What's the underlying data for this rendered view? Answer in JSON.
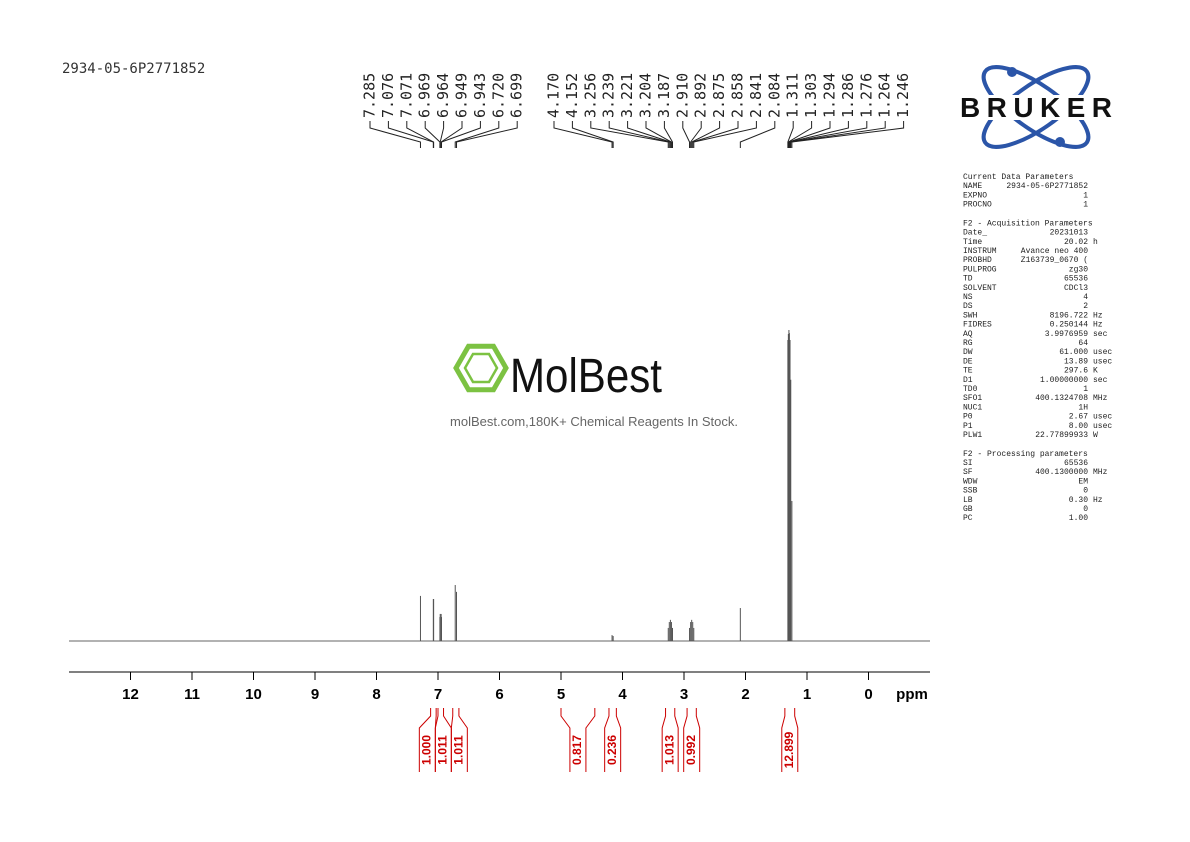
{
  "sample_id": "2934-05-6P2771852",
  "logo_text": "BRUKER",
  "watermark": {
    "brand": "MolBest",
    "tagline": "molBest.com,180K+ Chemical Reagents In Stock."
  },
  "chart_data": {
    "type": "nmr",
    "xlabel": "ppm",
    "xlim": [
      13,
      -1
    ],
    "xticks": [
      12,
      11,
      10,
      9,
      8,
      7,
      6,
      5,
      4,
      3,
      2,
      1,
      0
    ],
    "ylim": [
      0,
      100
    ],
    "color": "#555555",
    "peak_ppm": [
      7.285,
      7.076,
      7.071,
      6.969,
      6.964,
      6.949,
      6.943,
      6.72,
      6.699,
      4.17,
      4.152,
      3.256,
      3.239,
      3.221,
      3.204,
      3.187,
      2.91,
      2.892,
      2.875,
      2.858,
      2.841,
      2.084,
      1.311,
      1.303,
      1.294,
      1.286,
      1.276,
      1.264,
      1.246
    ],
    "peak_labels": [
      "7.285",
      "7.076",
      "7.071",
      "6.969",
      "6.964",
      "6.949",
      "6.943",
      "6.720",
      "6.699",
      "4.170",
      "4.152",
      "3.256",
      "3.239",
      "3.221",
      "3.204",
      "3.187",
      "2.910",
      "2.892",
      "2.875",
      "2.858",
      "2.841",
      "2.084",
      "1.311",
      "1.303",
      "1.294",
      "1.286",
      "1.276",
      "1.264",
      "1.246"
    ],
    "peak_heights": [
      14.5,
      13.5,
      13.5,
      7.7,
      8.7,
      8.7,
      7.7,
      18,
      15.8,
      1.9,
      1.6,
      4.2,
      6.1,
      6.8,
      6.1,
      4.2,
      4.2,
      6.1,
      6.8,
      6.1,
      4.2,
      10.6,
      96.8,
      98.7,
      100,
      99,
      96.8,
      84,
      45
    ],
    "integral_color": "#cc0000",
    "integrals": [
      {
        "range": [
          7.12,
          7.03
        ],
        "value": 1,
        "label": "1.000"
      },
      {
        "range": [
          7.0,
          6.91
        ],
        "value": 1.011,
        "label": "1.011"
      },
      {
        "range": [
          6.76,
          6.66
        ],
        "value": 1.011,
        "label": "1.011"
      },
      {
        "range": [
          5.0,
          4.45
        ],
        "value": 0.817,
        "label": "0.817"
      },
      {
        "range": [
          4.22,
          4.1
        ],
        "value": 0.236,
        "label": "0.236"
      },
      {
        "range": [
          3.3,
          3.15
        ],
        "value": 1.013,
        "label": "1.013"
      },
      {
        "range": [
          2.95,
          2.8
        ],
        "value": 0.992,
        "label": "0.992"
      },
      {
        "range": [
          1.36,
          1.2
        ],
        "value": 12.899,
        "label": "12.899"
      }
    ]
  },
  "parameters": [
    {
      "title": "Current Data Parameters",
      "rows": [
        [
          "NAME",
          "2934-05-6P2771852",
          ""
        ],
        [
          "EXPNO",
          "1",
          ""
        ],
        [
          "PROCNO",
          "1",
          ""
        ]
      ]
    },
    {
      "title": "F2 - Acquisition Parameters",
      "rows": [
        [
          "Date_",
          "20231013",
          ""
        ],
        [
          "Time",
          "20.02",
          "h"
        ],
        [
          "INSTRUM",
          "Avance neo 400",
          ""
        ],
        [
          "PROBHD",
          "Z163739_0670 (",
          ""
        ],
        [
          "PULPROG",
          "zg30",
          ""
        ],
        [
          "TD",
          "65536",
          ""
        ],
        [
          "SOLVENT",
          "CDCl3",
          ""
        ],
        [
          "NS",
          "4",
          ""
        ],
        [
          "DS",
          "2",
          ""
        ],
        [
          "SWH",
          "8196.722",
          "Hz"
        ],
        [
          "FIDRES",
          "0.250144",
          "Hz"
        ],
        [
          "AQ",
          "3.9976959",
          "sec"
        ],
        [
          "RG",
          "64",
          ""
        ],
        [
          "DW",
          "61.000",
          "usec"
        ],
        [
          "DE",
          "13.89",
          "usec"
        ],
        [
          "TE",
          "297.6",
          "K"
        ],
        [
          "D1",
          "1.00000000",
          "sec"
        ],
        [
          "TD0",
          "1",
          ""
        ],
        [
          "SFO1",
          "400.1324708",
          "MHz"
        ],
        [
          "NUC1",
          "1H",
          ""
        ],
        [
          "P0",
          "2.67",
          "usec"
        ],
        [
          "P1",
          "8.00",
          "usec"
        ],
        [
          "PLW1",
          "22.77899933",
          "W"
        ]
      ]
    },
    {
      "title": "F2 - Processing parameters",
      "rows": [
        [
          "SI",
          "65536",
          ""
        ],
        [
          "SF",
          "400.1300000",
          "MHz"
        ],
        [
          "WDW",
          "EM",
          ""
        ],
        [
          "SSB",
          "0",
          ""
        ],
        [
          "LB",
          "0.30",
          "Hz"
        ],
        [
          "GB",
          "0",
          ""
        ],
        [
          "PC",
          "1.00",
          ""
        ]
      ]
    }
  ]
}
